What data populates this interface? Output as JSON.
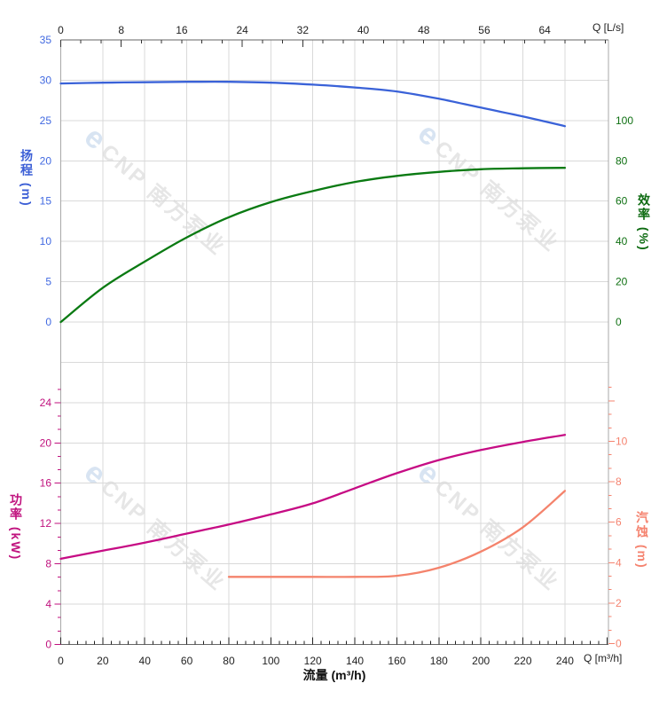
{
  "watermark": {
    "logo_char": "e",
    "text": "CNP 南方泵业",
    "logo_color": "#b9cfe8",
    "text_color": "#d2d2d2"
  },
  "axes": {
    "x_top": {
      "title": "Q [L/s]",
      "unit": "L/s",
      "min": 0,
      "max": 72.5,
      "major_step": 8,
      "tick_labels": [
        0,
        8,
        16,
        24,
        32,
        40,
        48,
        56,
        64
      ],
      "color": "#333333"
    },
    "x_bottom": {
      "title": "Q [m³/h]",
      "axis_label": "流量 (m³/h)",
      "unit": "m³/h",
      "min": 0,
      "max": 260,
      "major_step": 20,
      "tick_labels": [
        0,
        20,
        40,
        60,
        80,
        100,
        120,
        140,
        160,
        180,
        200,
        220,
        240
      ],
      "color": "#222222"
    },
    "head": {
      "title": "扬程 (m)",
      "unit": "m",
      "min": 0,
      "max": 35,
      "major_step": 5,
      "tick_labels": [
        35,
        30,
        25,
        20,
        15,
        10,
        5,
        0
      ],
      "color": "#4169e1"
    },
    "eff": {
      "title": "效率 (%)",
      "unit": "%",
      "min": 0,
      "max": 100,
      "major_step": 20,
      "tick_labels": [
        100,
        80,
        60,
        40,
        20,
        0
      ],
      "color": "#0f7012"
    },
    "power": {
      "title": "功率 (kW)",
      "unit": "kW",
      "min": 0,
      "max": 24,
      "major_step": 4,
      "tick_labels": [
        24,
        20,
        16,
        12,
        8,
        4,
        0
      ],
      "color": "#c0127e"
    },
    "npsh": {
      "title": "汽蚀 (m)",
      "unit": "m",
      "min": 0,
      "max": 10,
      "major_step": 2,
      "tick_labels": [
        10,
        8,
        6,
        4,
        2,
        0
      ],
      "color": "#f5836f"
    }
  },
  "chart_data": [
    {
      "type": "line",
      "name": "扬程 (Head, m)",
      "y_axis": "head",
      "color": "#3a62d8",
      "x": [
        0,
        20,
        40,
        60,
        80,
        100,
        120,
        140,
        160,
        180,
        200,
        220,
        240
      ],
      "y": [
        29.6,
        29.7,
        29.75,
        29.8,
        29.8,
        29.7,
        29.45,
        29.1,
        28.6,
        27.7,
        26.6,
        25.5,
        24.3
      ]
    },
    {
      "type": "line",
      "name": "效率 (Efficiency, %)",
      "y_axis": "eff",
      "color": "#0a7a12",
      "x": [
        0,
        20,
        40,
        60,
        80,
        100,
        120,
        140,
        160,
        180,
        200,
        220,
        240
      ],
      "y": [
        0,
        17,
        30,
        42,
        52,
        59.5,
        65,
        69.5,
        72.5,
        74.5,
        75.8,
        76.3,
        76.5
      ]
    },
    {
      "type": "line",
      "name": "功率 (Power, kW)",
      "y_axis": "power",
      "color": "#c60c84",
      "x": [
        0,
        20,
        40,
        60,
        80,
        100,
        120,
        140,
        160,
        180,
        200,
        220,
        240
      ],
      "y": [
        8.5,
        9.3,
        10.1,
        11,
        11.9,
        12.9,
        14,
        15.5,
        17,
        18.3,
        19.3,
        20.1,
        20.8
      ]
    },
    {
      "type": "line",
      "name": "汽蚀 (NPSH, m)",
      "y_axis": "npsh",
      "color": "#f4836c",
      "x": [
        80,
        100,
        120,
        140,
        160,
        180,
        200,
        220,
        240
      ],
      "y": [
        3.3,
        3.3,
        3.3,
        3.3,
        3.35,
        3.75,
        4.55,
        5.75,
        7.55
      ]
    }
  ]
}
